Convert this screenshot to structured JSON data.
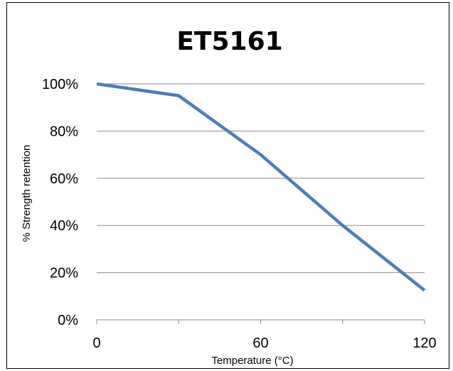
{
  "chart_data": {
    "type": "line",
    "title": "ET5161",
    "xlabel": "Temperature (°C)",
    "ylabel": "% Strength retention",
    "x_ticks": [
      "0",
      "60",
      "120"
    ],
    "y_ticks": [
      "0%",
      "20%",
      "40%",
      "60%",
      "80%",
      "100%"
    ],
    "xlim": [
      0,
      120
    ],
    "ylim": [
      0,
      100
    ],
    "grid": true,
    "series": [
      {
        "color": "#4a7ebb",
        "x": [
          0,
          30,
          60,
          90,
          120
        ],
        "y": [
          100,
          95,
          70,
          40,
          12.5
        ]
      }
    ]
  }
}
